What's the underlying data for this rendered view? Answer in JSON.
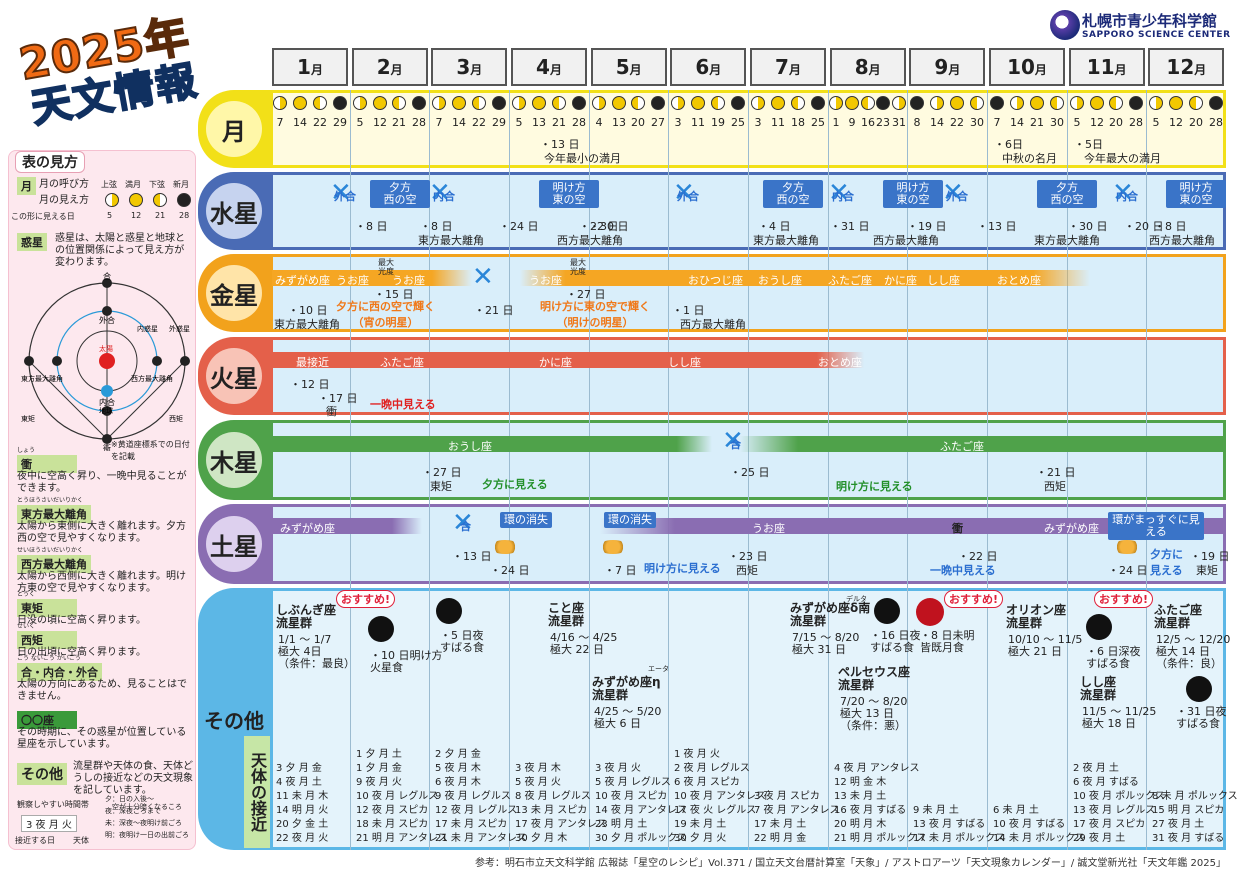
{
  "title_year": "2025年",
  "title_main": "天文情報",
  "logo": {
    "name": "札幌市青少年科学館",
    "sub": "SAPPORO SCIENCE CENTER"
  },
  "months": [
    {
      "n": "1",
      "u": "月"
    },
    {
      "n": "2",
      "u": "月"
    },
    {
      "n": "3",
      "u": "月"
    },
    {
      "n": "4",
      "u": "月"
    },
    {
      "n": "5",
      "u": "月"
    },
    {
      "n": "6",
      "u": "月"
    },
    {
      "n": "7",
      "u": "月"
    },
    {
      "n": "8",
      "u": "月"
    },
    {
      "n": "9",
      "u": "月"
    },
    {
      "n": "10",
      "u": "月"
    },
    {
      "n": "11",
      "u": "月"
    },
    {
      "n": "12",
      "u": "月"
    }
  ],
  "rows": {
    "moon": "月",
    "mercury": "水星",
    "venus": "金星",
    "mars": "火星",
    "jupiter": "木星",
    "saturn": "土星",
    "other": "その他",
    "approach": "天体の接近"
  },
  "moon_days": [
    [
      "7",
      "14",
      "22",
      "29"
    ],
    [
      "5",
      "12",
      "21",
      "28"
    ],
    [
      "7",
      "14",
      "22",
      "29"
    ],
    [
      "5",
      "13",
      "21",
      "28"
    ],
    [
      "4",
      "13",
      "20",
      "27"
    ],
    [
      "3",
      "11",
      "19",
      "25"
    ],
    [
      "3",
      "11",
      "18",
      "25"
    ],
    [
      "1",
      "9",
      "16",
      "23",
      "31"
    ],
    [
      "8",
      "14",
      "22",
      "30"
    ],
    [
      "7",
      "14",
      "21",
      "30"
    ],
    [
      "5",
      "12",
      "20",
      "28"
    ],
    [
      "5",
      "12",
      "20",
      "28"
    ]
  ],
  "moon_notes": {
    "a1": "・13 日",
    "a2": "今年最小の満月",
    "b1": "・6日",
    "b2": "中秋の名月",
    "c1": "・5日",
    "c2": "今年最大の満月"
  },
  "mercury": {
    "gaigo": "外合",
    "naigo": "内合",
    "evening": "夕方\n西の空",
    "morning": "明け方\n東の空",
    "notes": [
      "・8 日",
      "・8 日",
      "・24 日",
      "・22 日",
      "・30 日",
      "・4 日",
      "・31 日",
      "・19 日",
      "・13 日",
      "・30 日",
      "・20 日",
      "・8 日"
    ],
    "east": "東方最大離角",
    "west": "西方最大離角"
  },
  "venus": {
    "const": [
      "みずがめ座",
      "うお座",
      "うお座",
      "うお座",
      "おひつじ座",
      "おうし座",
      "ふたご座",
      "かに座",
      "しし座",
      "おとめ座"
    ],
    "maxbright": "最大\n光度",
    "d15": "・15 日",
    "d27": "・27 日",
    "n1": "・10 日",
    "n1b": "東方最大離角",
    "evening": "夕方に西の空で輝く\n（宵の明星）",
    "n2": "・21 日",
    "morning": "明け方に東の空で輝く\n（明けの明星）",
    "n3": "・1 日",
    "n3b": "西方最大離角"
  },
  "mars": {
    "closest": "最接近",
    "const": [
      "ふたご座",
      "かに座",
      "しし座",
      "おとめ座"
    ],
    "d12": "・12 日",
    "d17": "・17 日",
    "oppo": "衝",
    "allnight": "一晩中見える"
  },
  "jupiter": {
    "const": [
      "おうし座",
      "ふたご座"
    ],
    "go": "合",
    "d27": "・27 日",
    "east": "東矩",
    "evening": "夕方に見える",
    "d25": "・25 日",
    "morning": "明け方に見える",
    "d21": "・21 日",
    "west": "西矩"
  },
  "saturn": {
    "const": [
      "みずがめ座",
      "うお座",
      "みずがめ座"
    ],
    "go": "合",
    "ring1": "環の消失",
    "ring2": "環の消失",
    "ring3": "環がまっすぐに見える",
    "d13": "・13 日",
    "d24": "・24 日",
    "d7": "・7 日",
    "morning": "明け方に見える",
    "d23": "・23 日",
    "west": "西矩",
    "oppo": "衝",
    "d22": "・22 日",
    "allnight": "一晩中見える",
    "d24b": "・24 日",
    "evening": "夕方に\n見える",
    "d19": "・19 日",
    "east": "東矩"
  },
  "other": {
    "osusume": "おすすめ!",
    "quad": {
      "t": "しぶんぎ座\n流星群",
      "d": "1/1 ～ 1/7\n極大 4日\n（条件：最良）"
    },
    "lunar1": "・10 日明け方\n火星食",
    "pleiades1": "・5 日夜\nすばる食",
    "lyr": {
      "t": "こと座\n流星群",
      "d": "4/16 ～ 4/25\n極大 22 日"
    },
    "eta": {
      "t": "みずがめ座η\n流星群",
      "d": "4/25 ～ 5/20\n極大 6 日",
      "x": "エータ"
    },
    "delta": {
      "t": "みずがめ座δ南\n流星群",
      "d": "7/15 ～ 8/20\n極大 31 日",
      "x": "デルタ"
    },
    "pleiades2": "・16 日夜\nすばる食",
    "perseid": {
      "t": "ペルセウス座\n流星群",
      "d": "7/20 ～ 8/20\n極大 13 日\n（条件：悪）"
    },
    "eclipse": "・8 日未明\n皆既月食",
    "orionid": {
      "t": "オリオン座\n流星群",
      "d": "10/10 ～ 11/5\n極大 21 日"
    },
    "pleiades3": "・6 日深夜\nすばる食",
    "leonid": {
      "t": "しし座\n流星群",
      "d": "11/5 ～ 11/25\n極大 18 日"
    },
    "geminid": {
      "t": "ふたご座\n流星群",
      "d": "12/5 ～ 12/20\n極大 14 日\n（条件：良）"
    },
    "pleiades4": "・31 日夜\nすばる食"
  },
  "approach": [
    [
      "3 夕 月 金",
      "4 夜 月 土",
      "11 未 月 木",
      "14 明 月 火",
      "20 夕 金 土",
      "22 夜 月 火"
    ],
    [
      "1 夕 月 土",
      "1 夕 月 金",
      "9 夜 月 火",
      "10 夜 月 レグルス",
      "12 夜 月 スピカ",
      "18 未 月 スピカ",
      "21 明 月 アンタレス"
    ],
    [
      "2 夕 月 金",
      "5 夜 月 木",
      "6 夜 月 木",
      "9 夜 月 レグルス",
      "12 夜 月 レグルス",
      "17 未 月 スピカ",
      "21 未 月 アンタレス"
    ],
    [
      "3 夜 月 木",
      "5 夜 月 火",
      "8 夜 月 レグルス",
      "13 未 月 スピカ",
      "17 夜 月 アンタレス",
      "30 夕 月 木"
    ],
    [
      "3 夜 月 火",
      "5 夜 月 レグルス",
      "10 夜 月 スピカ",
      "14 夜 月 アンタレス",
      "23 明 月 土",
      "30 夕 月 ポルックス"
    ],
    [
      "1 夜 月 火",
      "2 夜 月 レグルス",
      "6 夜 月 スピカ",
      "10 夜 月 アンタレス",
      "17 夜 火 レグルス",
      "19 未 月 土",
      "30 夕 月 火"
    ],
    [
      "3 夜 月 スピカ",
      "7 夜 月 アンタレス",
      "17 未 月 土",
      "22 明 月 金"
    ],
    [
      "4 夜 月 アンタレス",
      "12 明 金 木",
      "13 未 月 土",
      "16 夜 月 すばる",
      "20 明 月 木",
      "21 明 月 ポルックス"
    ],
    [
      "9 未 月 土",
      "13 夜 月 すばる",
      "17 未 月 ポルックス"
    ],
    [
      "6 未 月 土",
      "10 夜 月 すばる",
      "14 未 月 ポルックス"
    ],
    [
      "2 夜 月 土",
      "6 夜 月 すばる",
      "10 夜 月 ポルックス",
      "13 夜 月 レグルス",
      "17 夜 月 スピカ",
      "29 夜 月 土"
    ],
    [
      "8 未 月 ポルックス",
      "15 明 月 スピカ",
      "27 夜 月 土",
      "31 夜 月 すばる"
    ]
  ],
  "legend": {
    "head": "表の見方",
    "moon_tag": "月",
    "moon_l1": "月の呼び方",
    "moon_l2": "月の見え方",
    "moon_l3": "この形に見える日",
    "phases": [
      "上弦",
      "満月",
      "下弦",
      "新月"
    ],
    "pdays": [
      "5",
      "12",
      "21",
      "28"
    ],
    "planet_tag": "惑星",
    "planet_txt": "惑星は、太陽と惑星と地球との位置関係によって見え方が変わります。",
    "diagram": [
      "合",
      "外合",
      "内合",
      "衝",
      "東方最大離角",
      "西方最大離角",
      "東矩",
      "西矩",
      "地球",
      "太陽",
      "内惑星",
      "外惑星"
    ],
    "note": "※黄道座標系での日付を記載",
    "defs": [
      {
        "t": "衝",
        "r": "しょう",
        "d": "夜中に空高く昇り、一晩中見ることができます。"
      },
      {
        "t": "東方最大離角",
        "r": "とうほうさいだいりかく",
        "d": "太陽から東側に大きく離れます。夕方西の空で見やすくなります。"
      },
      {
        "t": "西方最大離角",
        "r": "せいほうさいだいりかく",
        "d": "太陽から西側に大きく離れます。明け方東の空で見やすくなります。"
      },
      {
        "t": "東矩",
        "r": "とうく",
        "d": "日没の頃に空高く昇ります。"
      },
      {
        "t": "西矩",
        "r": "せいく",
        "d": "日の出頃に空高く昇ります。"
      },
      {
        "t": "合・内合・外合",
        "r": "ごう ないごう がいごう",
        "d": "太陽の方向にあるため、見ることはできません。"
      },
      {
        "t": "〇〇座",
        "r": "",
        "d": "その時期に、その惑星が位置している星座を示しています。"
      }
    ],
    "other_tag": "その他",
    "other_txt": "流星群や天体の食、天体どうしの接近などの天文現象を記しています。",
    "time_head": "観察しやすい時間帯",
    "time_items": [
      "夕：日の入後～\n　空が十分暗くなるころ",
      "夜：深夜ごろまで",
      "未：深夜～夜明け前ごろ",
      "明：夜明け一日の出前ごろ"
    ],
    "sample": "3 夜 月 火",
    "sample_l1": "接近する日",
    "sample_l2": "天体"
  },
  "footer": "参考：明石市立天文科学館 広報誌「星空のレシピ」Vol.371 / 国立天文台暦計算室「天象」/ アストロアーツ「天文現象カレンダー」/ 誠文堂新光社「天文年鑑 2025」",
  "colors": {
    "moon": "#f2e018",
    "mercury": "#4a6bb5",
    "venus": "#f2a21c",
    "mars": "#e4604a",
    "jupiter": "#4fa24a",
    "saturn": "#8a6db2",
    "other": "#5cb7e6"
  }
}
